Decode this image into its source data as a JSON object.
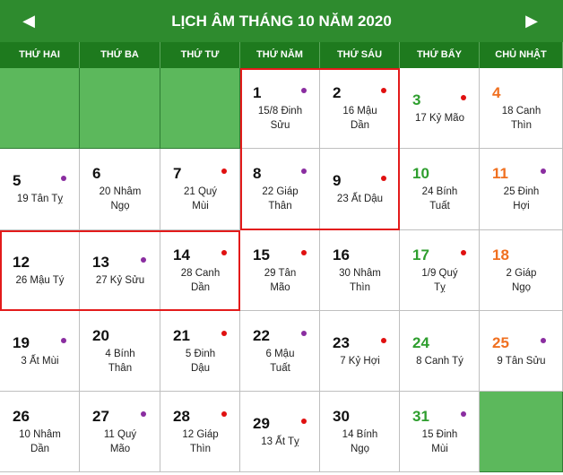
{
  "title": "LỊCH ÂM THÁNG 10 NĂM 2020",
  "nav": {
    "prev": "◀",
    "next": "▶"
  },
  "weekdays": [
    "THỨ HAI",
    "THỨ BA",
    "THỨ TƯ",
    "THỨ NĂM",
    "THỨ SÁU",
    "THỨ BẨY",
    "CHỦ NHẬT"
  ],
  "days": [
    {
      "solar": "1",
      "lunar": [
        "15/8 Đinh",
        "Sửu"
      ],
      "dot": "purple"
    },
    {
      "solar": "2",
      "lunar": [
        "16 Mậu",
        "Dần"
      ],
      "dot": "red"
    },
    {
      "solar": "3",
      "lunar": [
        "17 Kỷ Mão"
      ],
      "dot": "red"
    },
    {
      "solar": "4",
      "lunar": [
        "18 Canh",
        "Thìn"
      ],
      "dot": ""
    },
    {
      "solar": "5",
      "lunar": [
        "19 Tân Tỵ"
      ],
      "dot": "purple"
    },
    {
      "solar": "6",
      "lunar": [
        "20 Nhâm",
        "Ngọ"
      ],
      "dot": ""
    },
    {
      "solar": "7",
      "lunar": [
        "21 Quý",
        "Mùi"
      ],
      "dot": "red"
    },
    {
      "solar": "8",
      "lunar": [
        "22 Giáp",
        "Thân"
      ],
      "dot": "purple"
    },
    {
      "solar": "9",
      "lunar": [
        "23 Ất Dậu"
      ],
      "dot": "red"
    },
    {
      "solar": "10",
      "lunar": [
        "24 Bính",
        "Tuất"
      ],
      "dot": ""
    },
    {
      "solar": "11",
      "lunar": [
        "25 Đinh",
        "Hợi"
      ],
      "dot": "purple"
    },
    {
      "solar": "12",
      "lunar": [
        "26 Mậu Tý"
      ],
      "dot": ""
    },
    {
      "solar": "13",
      "lunar": [
        "27 Kỷ Sửu"
      ],
      "dot": "purple"
    },
    {
      "solar": "14",
      "lunar": [
        "28 Canh",
        "Dần"
      ],
      "dot": "red"
    },
    {
      "solar": "15",
      "lunar": [
        "29 Tân",
        "Mão"
      ],
      "dot": "red"
    },
    {
      "solar": "16",
      "lunar": [
        "30 Nhâm",
        "Thìn"
      ],
      "dot": ""
    },
    {
      "solar": "17",
      "lunar": [
        "1/9 Quý",
        "Tỵ"
      ],
      "dot": "red"
    },
    {
      "solar": "18",
      "lunar": [
        "2 Giáp",
        "Ngọ"
      ],
      "dot": ""
    },
    {
      "solar": "19",
      "lunar": [
        "3 Ất Mùi"
      ],
      "dot": "purple"
    },
    {
      "solar": "20",
      "lunar": [
        "4 Bính",
        "Thân"
      ],
      "dot": ""
    },
    {
      "solar": "21",
      "lunar": [
        "5 Đinh",
        "Dậu"
      ],
      "dot": "red"
    },
    {
      "solar": "22",
      "lunar": [
        "6 Mậu",
        "Tuất"
      ],
      "dot": "purple"
    },
    {
      "solar": "23",
      "lunar": [
        "7 Kỷ Hợi"
      ],
      "dot": "red"
    },
    {
      "solar": "24",
      "lunar": [
        "8 Canh Tý"
      ],
      "dot": ""
    },
    {
      "solar": "25",
      "lunar": [
        "9 Tân Sửu"
      ],
      "dot": "purple"
    },
    {
      "solar": "26",
      "lunar": [
        "10 Nhâm",
        "Dần"
      ],
      "dot": ""
    },
    {
      "solar": "27",
      "lunar": [
        "11 Quý",
        "Mão"
      ],
      "dot": "purple"
    },
    {
      "solar": "28",
      "lunar": [
        "12 Giáp",
        "Thìn"
      ],
      "dot": "red"
    },
    {
      "solar": "29",
      "lunar": [
        "13 Ất Tỵ"
      ],
      "dot": "red"
    },
    {
      "solar": "30",
      "lunar": [
        "14 Bính",
        "Ngọ"
      ],
      "dot": ""
    },
    {
      "solar": "31",
      "lunar": [
        "15 Đinh",
        "Mùi"
      ],
      "dot": "purple"
    }
  ],
  "leading_empty_cells": 3,
  "highlighted_dates": [
    "1",
    "2",
    "8",
    "9",
    "12",
    "13",
    "14"
  ],
  "colors": {
    "title_bg": "#2e8b2e",
    "header_bg": "#1e7a1e",
    "empty_cell": "#5cb85c",
    "saturday": "#2e9e2e",
    "sunday": "#f07020",
    "highlight": "#e31b1b",
    "dot_red": "#e01010",
    "dot_purple": "#8a2da0"
  }
}
